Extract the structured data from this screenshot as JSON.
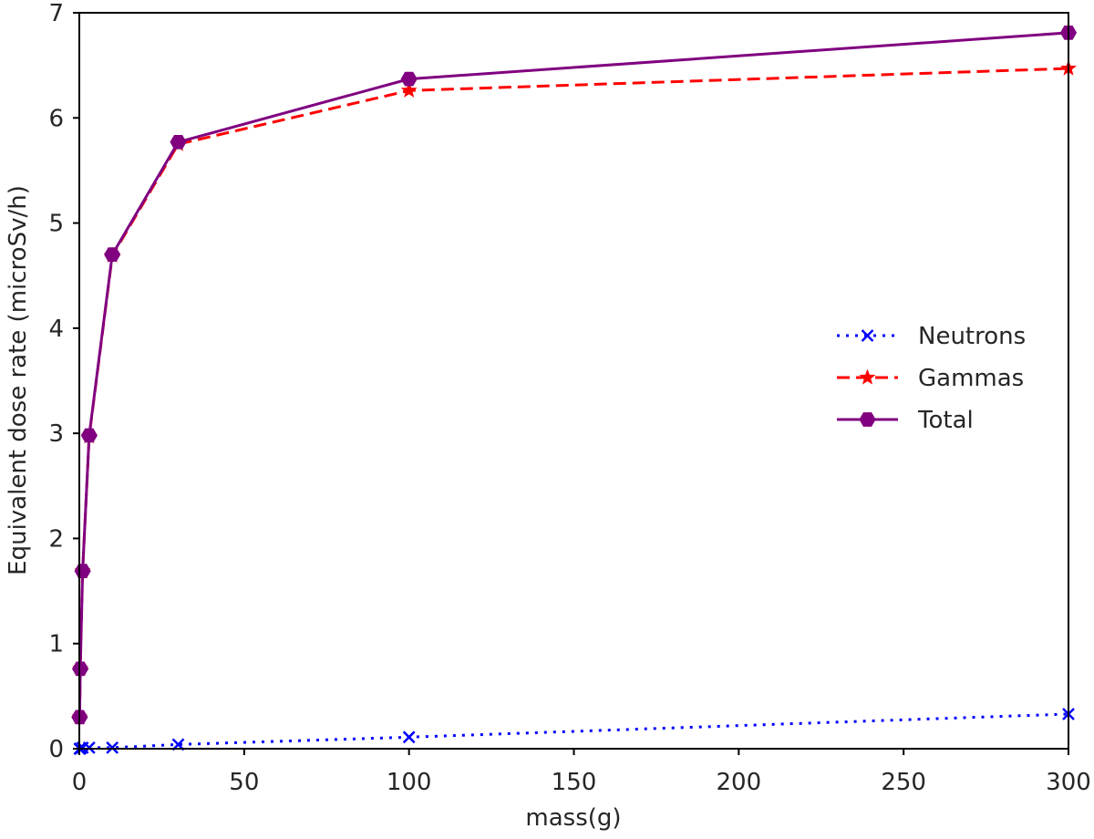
{
  "chart_data": {
    "type": "line",
    "title": "",
    "xlabel": "mass(g)",
    "ylabel": "Equivalent dose rate (microSv/h)",
    "xlim": [
      0,
      300
    ],
    "ylim": [
      0,
      7
    ],
    "xticks": [
      0,
      50,
      100,
      150,
      200,
      250,
      300
    ],
    "yticks": [
      0,
      1,
      2,
      3,
      4,
      5,
      6,
      7
    ],
    "grid": false,
    "legend_position": "center-right",
    "series": [
      {
        "name": "Neutrons",
        "color": "#0000ff",
        "line_style": "dotted",
        "marker": "x",
        "x": [
          0.1,
          0.3,
          1,
          3,
          10,
          30,
          100,
          300
        ],
        "y": [
          0.0,
          0.0,
          0.01,
          0.01,
          0.01,
          0.04,
          0.11,
          0.33
        ]
      },
      {
        "name": "Gammas",
        "color": "#ff0000",
        "line_style": "dashed",
        "marker": "star",
        "x": [
          0.1,
          0.3,
          1,
          3,
          10,
          30,
          100,
          300
        ],
        "y": [
          0.3,
          0.76,
          1.69,
          2.97,
          4.69,
          5.75,
          6.26,
          6.47
        ]
      },
      {
        "name": "Total",
        "color": "#800080",
        "line_style": "solid",
        "marker": "hexagon",
        "x": [
          0.1,
          0.3,
          1,
          3,
          10,
          30,
          100,
          300
        ],
        "y": [
          0.3,
          0.76,
          1.69,
          2.98,
          4.7,
          5.77,
          6.37,
          6.81
        ]
      }
    ]
  }
}
